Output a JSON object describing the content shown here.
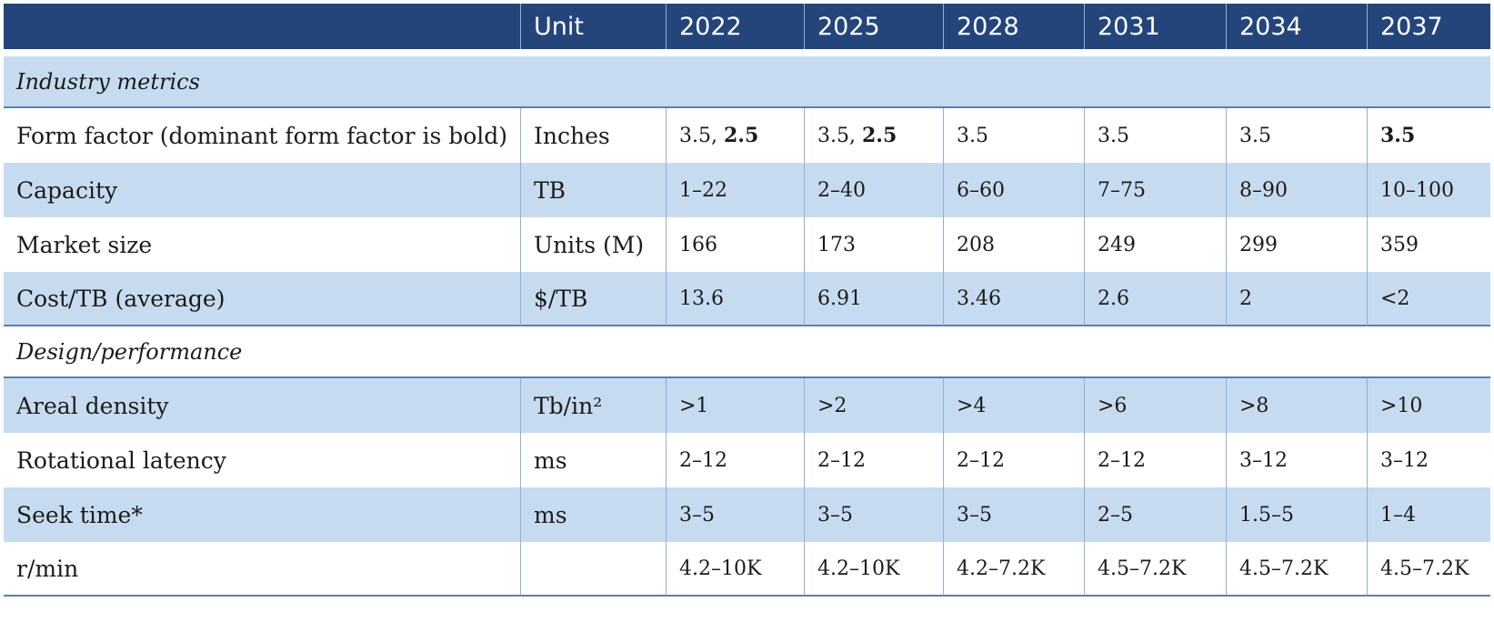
{
  "header": {
    "unit": "Unit",
    "years": [
      "2022",
      "2025",
      "2028",
      "2031",
      "2034",
      "2037"
    ]
  },
  "sections": [
    {
      "title": "Industry metrics",
      "rows": [
        {
          "label": "Form factor (dominant form factor is bold)",
          "unit": "Inches",
          "cells": [
            {
              "plain": "3.5, ",
              "bold": "2.5"
            },
            {
              "plain": "3.5, ",
              "bold": "2.5"
            },
            {
              "plain": "3.5",
              "bold": ""
            },
            {
              "plain": "3.5",
              "bold": ""
            },
            {
              "plain": "3.5",
              "bold": ""
            },
            {
              "plain": "",
              "bold": "3.5"
            }
          ]
        },
        {
          "label": "Capacity",
          "unit": "TB",
          "values": [
            "1–22",
            "2–40",
            "6–60",
            "7–75",
            "8–90",
            "10–100"
          ]
        },
        {
          "label": "Market size",
          "unit": "Units (M)",
          "values": [
            "166",
            "173",
            "208",
            "249",
            "299",
            "359"
          ]
        },
        {
          "label": "Cost/TB (average)",
          "unit": "$/TB",
          "values": [
            "13.6",
            "6.91",
            "3.46",
            "2.6",
            "2",
            "<2"
          ]
        }
      ]
    },
    {
      "title": "Design/performance",
      "rows": [
        {
          "label": "Areal density",
          "unit": "Tb/in²",
          "values": [
            ">1",
            ">2",
            ">4",
            ">6",
            ">8",
            ">10"
          ]
        },
        {
          "label": "Rotational latency",
          "unit": "ms",
          "values": [
            "2–12",
            "2–12",
            "2–12",
            "2–12",
            "3–12",
            "3–12"
          ]
        },
        {
          "label": "Seek time*",
          "unit": "ms",
          "values": [
            "3–5",
            "3–5",
            "3–5",
            "2–5",
            "1.5–5",
            "1–4"
          ]
        },
        {
          "label": "r/min",
          "unit": "",
          "values": [
            "4.2–10K",
            "4.2–10K",
            "4.2–7.2K",
            "4.5–7.2K",
            "4.5–7.2K",
            "4.5–7.2K"
          ]
        }
      ]
    }
  ]
}
